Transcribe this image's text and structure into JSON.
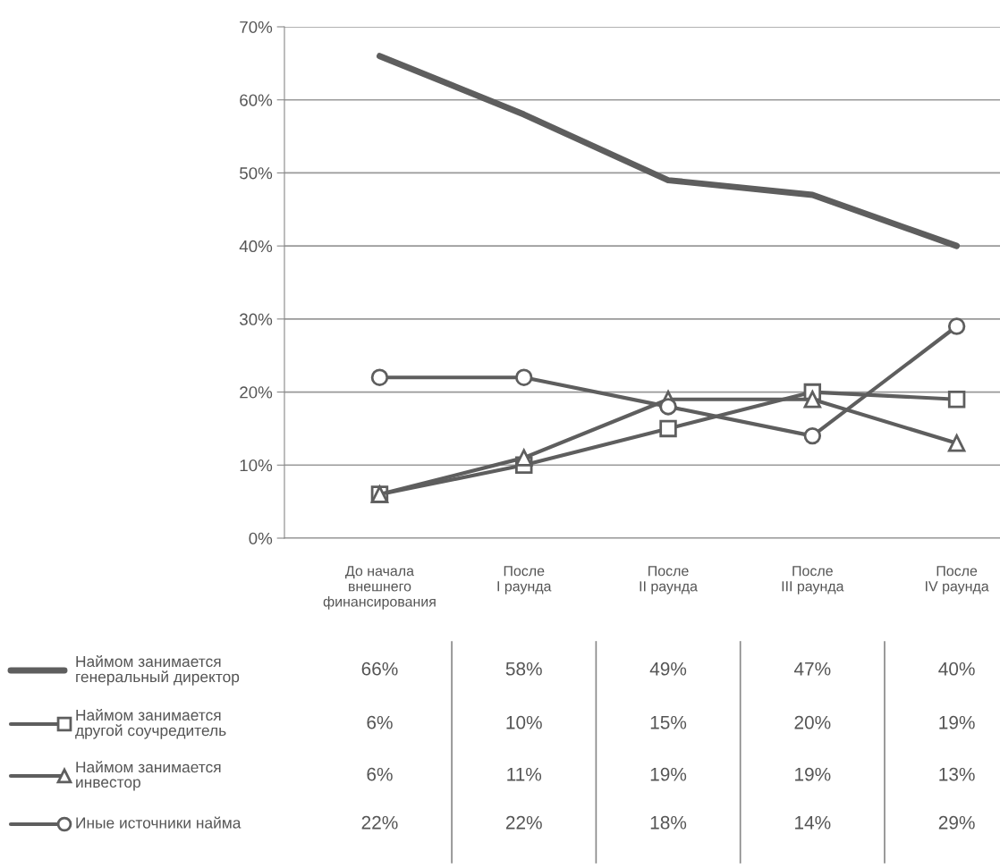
{
  "chart_data": {
    "type": "line",
    "categories": [
      "До начала\nвнешнего\nфинансирования",
      "После\nI раунда",
      "После\nII раунда",
      "После\nIII раунда",
      "После\nIV раунда"
    ],
    "series": [
      {
        "name": "Наймом занимается\nгенеральный директор",
        "color": "#5e5e5e",
        "marker": "none",
        "values": [
          66,
          58,
          49,
          47,
          40
        ],
        "value_labels": [
          "66%",
          "58%",
          "49%",
          "47%",
          "40%"
        ]
      },
      {
        "name": "Наймом занимается\nдругой соучредитель",
        "color": "#5e5e5e",
        "marker": "square",
        "values": [
          6,
          10,
          15,
          20,
          19
        ],
        "value_labels": [
          "6%",
          "10%",
          "15%",
          "20%",
          "19%"
        ]
      },
      {
        "name": "Наймом занимается\nинвестор",
        "color": "#5e5e5e",
        "marker": "triangle",
        "values": [
          6,
          11,
          19,
          19,
          13
        ],
        "value_labels": [
          "6%",
          "11%",
          "19%",
          "19%",
          "13%"
        ]
      },
      {
        "name": "Иные источники найма",
        "color": "#5e5e5e",
        "marker": "circle",
        "values": [
          22,
          22,
          18,
          14,
          29
        ],
        "value_labels": [
          "22%",
          "22%",
          "18%",
          "14%",
          "29%"
        ]
      }
    ],
    "ylim": [
      0,
      70
    ],
    "yticks": [
      {
        "value": 0,
        "label": "0%"
      },
      {
        "value": 10,
        "label": "10%"
      },
      {
        "value": 20,
        "label": "20%"
      },
      {
        "value": 30,
        "label": "30%"
      },
      {
        "value": 40,
        "label": "40%"
      },
      {
        "value": 50,
        "label": "50%"
      },
      {
        "value": 60,
        "label": "60%"
      },
      {
        "value": 70,
        "label": "70%"
      }
    ],
    "grid": "y",
    "legend": "bottom",
    "line_style": "solid"
  }
}
